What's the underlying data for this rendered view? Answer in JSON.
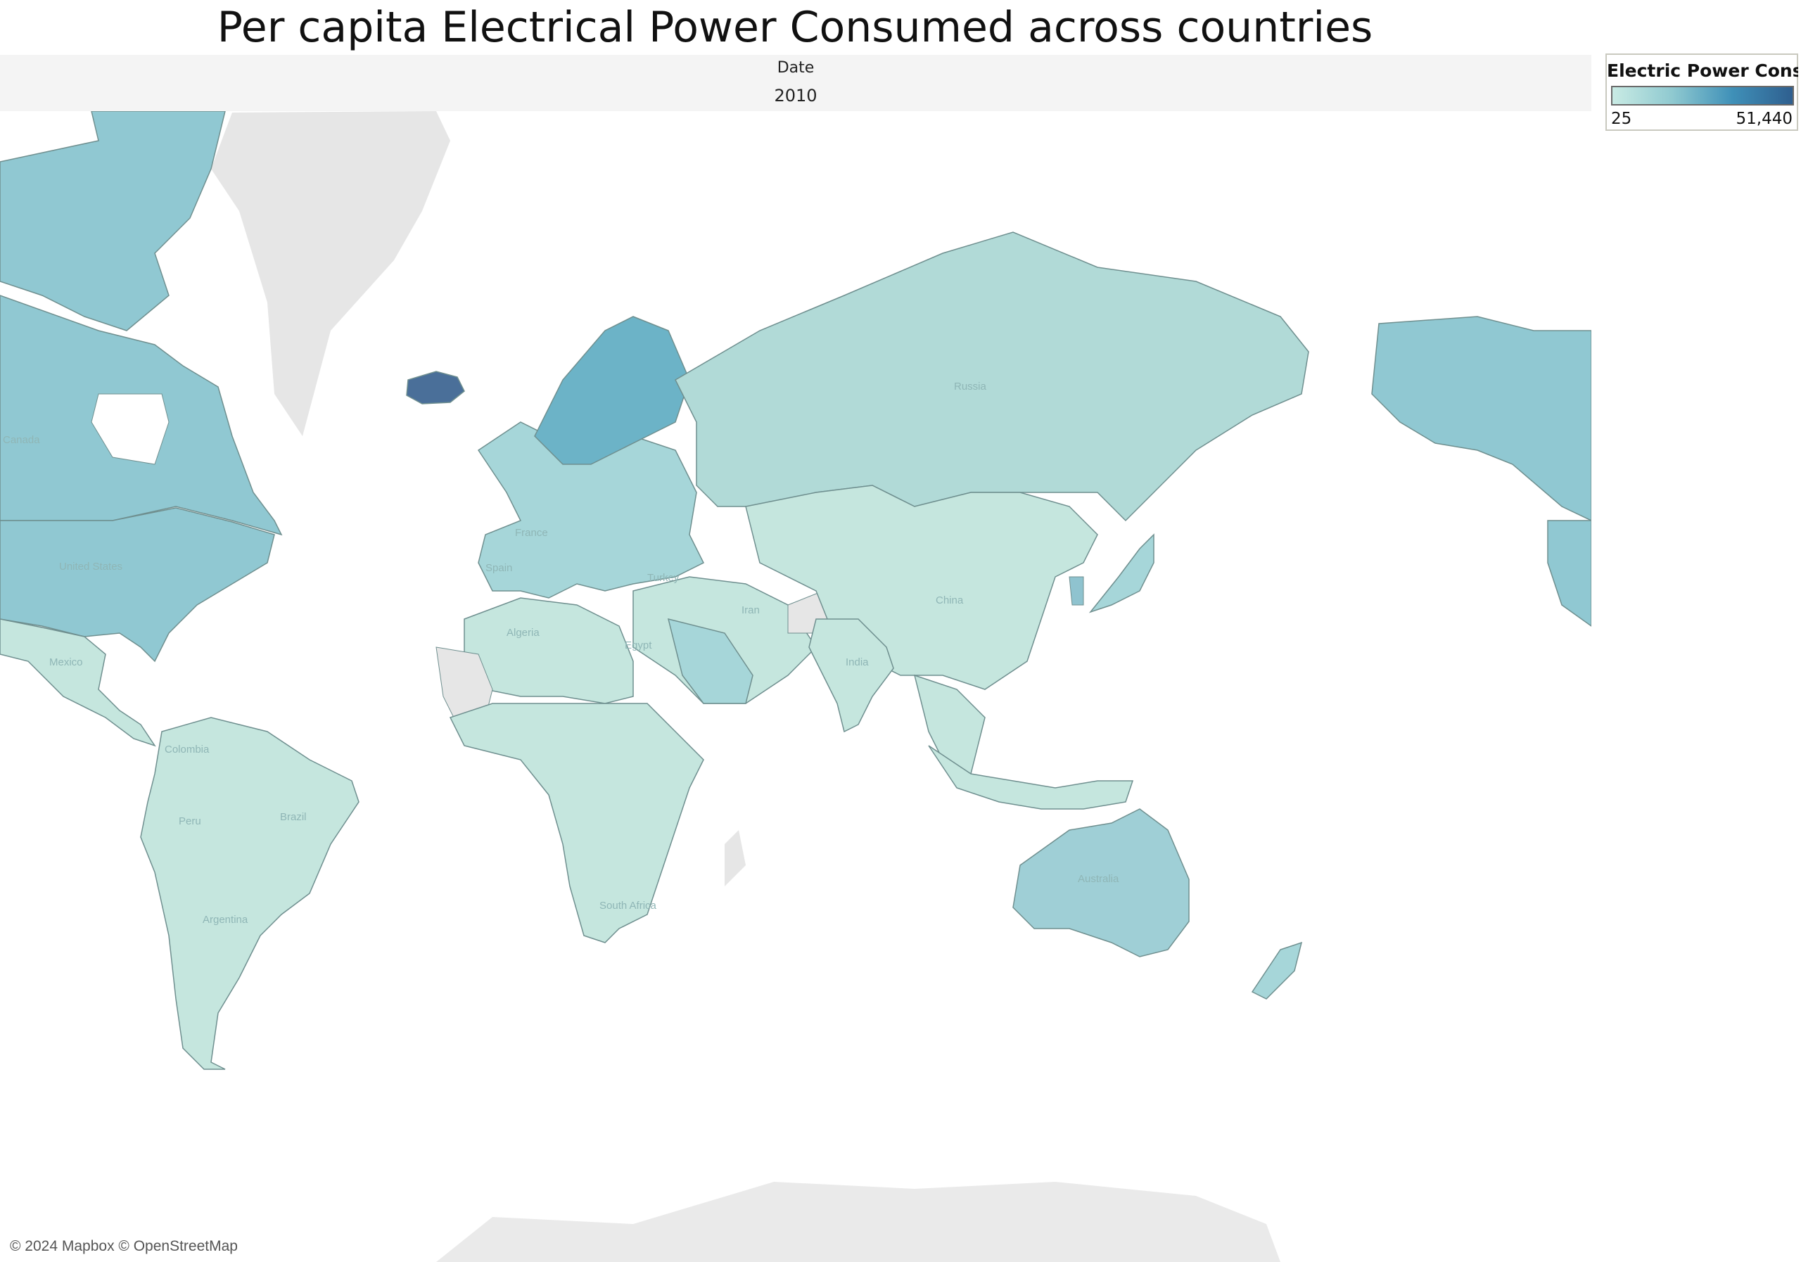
{
  "title": "Per capita Electrical Power Consumed across countries",
  "filter": {
    "label": "Date",
    "value": "2010"
  },
  "legend": {
    "title": "Electric Power Cons..",
    "min": "25",
    "max": "51,440"
  },
  "attribution": "© 2024 Mapbox © OpenStreetMap",
  "colors": {
    "low": "#c9ebe4",
    "mid": "#8fc9d0",
    "high": "#2f5f8f",
    "no_data": "#e6e6e6",
    "border": "#6f8f8f"
  },
  "map_labels": {
    "canada": "Canada",
    "united_states": "United States",
    "mexico": "Mexico",
    "colombia": "Colombia",
    "peru": "Peru",
    "brazil": "Brazil",
    "argentina": "Argentina",
    "france": "France",
    "spain": "Spain",
    "algeria": "Algeria",
    "egypt": "Egypt",
    "turkey": "Turkey",
    "iran": "Iran",
    "russia": "Russia",
    "china": "China",
    "india": "India",
    "south_africa": "South Africa",
    "australia": "Australia"
  }
}
